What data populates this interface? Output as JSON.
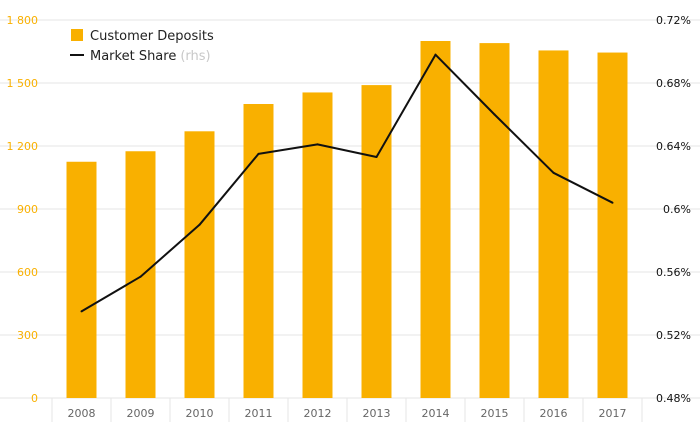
{
  "chart_data": {
    "type": "bar",
    "categories": [
      "2008",
      "2009",
      "2010",
      "2011",
      "2012",
      "2013",
      "2014",
      "2015",
      "2016",
      "2017"
    ],
    "series": [
      {
        "name": "Customer Deposits",
        "type": "bar",
        "axis": "left",
        "color": "#f9b000",
        "values": [
          1125,
          1175,
          1270,
          1400,
          1455,
          1490,
          1700,
          1690,
          1655,
          1645
        ]
      },
      {
        "name": "Market Share",
        "name_suffix": "(rhs)",
        "type": "line",
        "axis": "right",
        "color": "#111111",
        "values": [
          0.535,
          0.557,
          0.59,
          0.635,
          0.641,
          0.633,
          0.698,
          0.66,
          0.623,
          0.604
        ]
      }
    ],
    "y_left": {
      "lim": [
        0,
        1800
      ],
      "ticks": [
        0,
        300,
        600,
        900,
        1200,
        1500,
        1800
      ],
      "tick_labels": [
        "0",
        "300",
        "600",
        "900",
        "1 200",
        "1 500",
        "1 800"
      ],
      "label_color": "#f9b000"
    },
    "y_right": {
      "lim": [
        0.48,
        0.72
      ],
      "ticks": [
        0.48,
        0.52,
        0.56,
        0.6,
        0.64,
        0.68,
        0.72
      ],
      "tick_labels": [
        "0.48%",
        "0.52%",
        "0.56%",
        "0.6%",
        "0.64%",
        "0.68%",
        "0.72%"
      ],
      "label_color": "#111111"
    },
    "grid": true,
    "legend": "top-left",
    "colors": {
      "grid": "#e6e6e6",
      "x_tick_text": "#666666"
    }
  }
}
